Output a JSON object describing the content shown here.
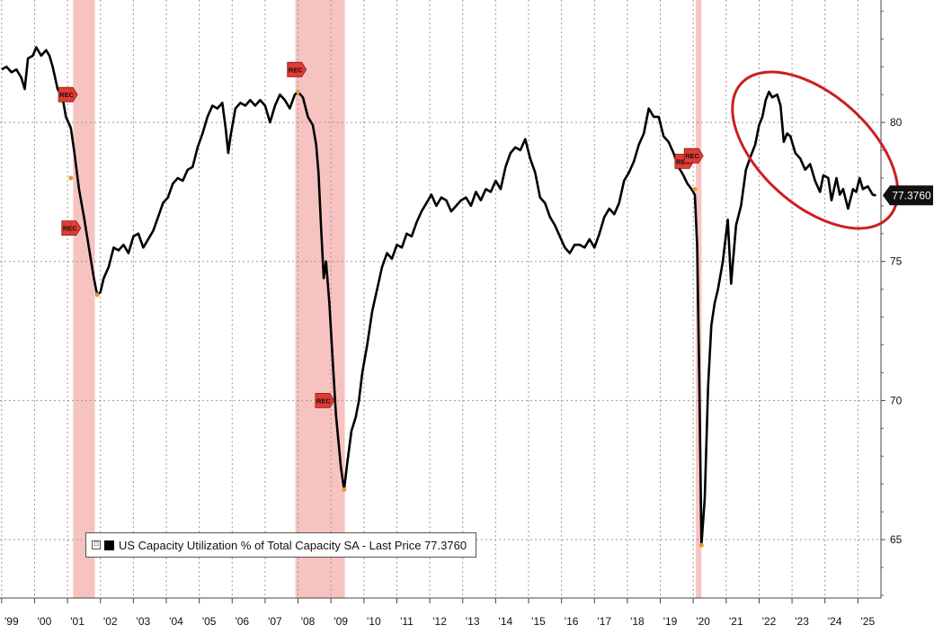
{
  "chart_data": {
    "type": "line",
    "legend_text": "US Capacity Utilization % of Total Capacity SA - Last Price 77.3760",
    "legend_placement": "bottom-left",
    "last_value_label": "77.3760",
    "last_value": 77.376,
    "ylim": [
      62.9,
      84.4
    ],
    "xlim": [
      1998.95,
      2025.7
    ],
    "y_ticks": [
      65,
      70,
      75,
      80
    ],
    "y_tick_labels": [
      "65",
      "70",
      "75",
      "80"
    ],
    "x_tick_labels": [
      "'99",
      "'00",
      "'01",
      "'02",
      "'03",
      "'04",
      "'05",
      "'06",
      "'07",
      "'08",
      "'09",
      "'10",
      "'11",
      "'12",
      "'13",
      "'14",
      "'15",
      "'16",
      "'17",
      "'18",
      "'19",
      "'20",
      "'21",
      "'22",
      "'23",
      "'24",
      "'25"
    ],
    "x_tick_values": [
      1999.3,
      2000.3,
      2001.3,
      2002.3,
      2003.3,
      2004.3,
      2005.3,
      2006.3,
      2007.3,
      2008.3,
      2009.3,
      2010.3,
      2011.3,
      2012.3,
      2013.3,
      2014.3,
      2015.3,
      2016.3,
      2017.3,
      2018.3,
      2019.3,
      2020.3,
      2021.3,
      2022.3,
      2023.3,
      2024.3,
      2025.3
    ],
    "grid": true,
    "recessions": [
      [
        2001.17,
        2001.83
      ],
      [
        2007.92,
        2009.42
      ],
      [
        2020.08,
        2020.25
      ]
    ],
    "rec_markers": [
      {
        "label": "REC",
        "x": 2001.0,
        "y": 81.0
      },
      {
        "label": "REC",
        "x": 2001.1,
        "y": 76.2
      },
      {
        "label": "REC",
        "x": 2007.95,
        "y": 81.9
      },
      {
        "label": "REC",
        "x": 2008.8,
        "y": 70.0
      },
      {
        "label": "REC",
        "x": 2019.72,
        "y": 78.6
      },
      {
        "label": "REC",
        "x": 2020.0,
        "y": 78.8
      }
    ],
    "series": [
      {
        "color": "#000000",
        "points": [
          [
            1999.0,
            81.9
          ],
          [
            1999.15,
            82.0
          ],
          [
            1999.3,
            81.8
          ],
          [
            1999.45,
            81.9
          ],
          [
            1999.6,
            81.6
          ],
          [
            1999.7,
            81.2
          ],
          [
            1999.8,
            82.3
          ],
          [
            1999.95,
            82.4
          ],
          [
            2000.05,
            82.7
          ],
          [
            2000.2,
            82.4
          ],
          [
            2000.35,
            82.6
          ],
          [
            2000.45,
            82.4
          ],
          [
            2000.55,
            82.0
          ],
          [
            2000.7,
            81.2
          ],
          [
            2000.85,
            80.9
          ],
          [
            2000.95,
            80.2
          ],
          [
            2001.1,
            79.8
          ],
          [
            2001.2,
            79.0
          ],
          [
            2001.35,
            77.6
          ],
          [
            2001.5,
            76.6
          ],
          [
            2001.65,
            75.5
          ],
          [
            2001.8,
            74.4
          ],
          [
            2001.9,
            73.8
          ],
          [
            2002.0,
            73.9
          ],
          [
            2002.1,
            74.4
          ],
          [
            2002.25,
            74.8
          ],
          [
            2002.4,
            75.5
          ],
          [
            2002.55,
            75.4
          ],
          [
            2002.7,
            75.6
          ],
          [
            2002.85,
            75.3
          ],
          [
            2003.0,
            75.9
          ],
          [
            2003.15,
            76.0
          ],
          [
            2003.3,
            75.5
          ],
          [
            2003.45,
            75.8
          ],
          [
            2003.6,
            76.1
          ],
          [
            2003.75,
            76.6
          ],
          [
            2003.9,
            77.1
          ],
          [
            2004.05,
            77.3
          ],
          [
            2004.2,
            77.8
          ],
          [
            2004.35,
            78.0
          ],
          [
            2004.5,
            77.9
          ],
          [
            2004.65,
            78.3
          ],
          [
            2004.8,
            78.4
          ],
          [
            2004.95,
            79.1
          ],
          [
            2005.1,
            79.6
          ],
          [
            2005.25,
            80.2
          ],
          [
            2005.4,
            80.6
          ],
          [
            2005.55,
            80.5
          ],
          [
            2005.7,
            80.7
          ],
          [
            2005.8,
            79.8
          ],
          [
            2005.88,
            78.9
          ],
          [
            2005.95,
            79.5
          ],
          [
            2006.1,
            80.5
          ],
          [
            2006.25,
            80.7
          ],
          [
            2006.4,
            80.6
          ],
          [
            2006.55,
            80.8
          ],
          [
            2006.7,
            80.6
          ],
          [
            2006.85,
            80.8
          ],
          [
            2007.0,
            80.6
          ],
          [
            2007.15,
            80.0
          ],
          [
            2007.3,
            80.6
          ],
          [
            2007.45,
            81.0
          ],
          [
            2007.6,
            80.8
          ],
          [
            2007.75,
            80.5
          ],
          [
            2007.9,
            81.0
          ],
          [
            2008.0,
            81.1
          ],
          [
            2008.15,
            80.9
          ],
          [
            2008.3,
            80.2
          ],
          [
            2008.45,
            79.9
          ],
          [
            2008.55,
            79.2
          ],
          [
            2008.62,
            78.2
          ],
          [
            2008.7,
            76.2
          ],
          [
            2008.78,
            74.4
          ],
          [
            2008.85,
            75.0
          ],
          [
            2008.95,
            73.5
          ],
          [
            2009.05,
            71.5
          ],
          [
            2009.15,
            69.5
          ],
          [
            2009.3,
            67.6
          ],
          [
            2009.4,
            66.8
          ],
          [
            2009.5,
            67.8
          ],
          [
            2009.62,
            68.9
          ],
          [
            2009.75,
            69.4
          ],
          [
            2009.85,
            70.0
          ],
          [
            2009.95,
            71.0
          ],
          [
            2010.1,
            72.0
          ],
          [
            2010.25,
            73.2
          ],
          [
            2010.4,
            74.0
          ],
          [
            2010.55,
            74.8
          ],
          [
            2010.7,
            75.3
          ],
          [
            2010.85,
            75.1
          ],
          [
            2011.0,
            75.6
          ],
          [
            2011.15,
            75.5
          ],
          [
            2011.3,
            76.0
          ],
          [
            2011.45,
            75.9
          ],
          [
            2011.6,
            76.4
          ],
          [
            2011.75,
            76.8
          ],
          [
            2011.9,
            77.1
          ],
          [
            2012.05,
            77.4
          ],
          [
            2012.2,
            77.0
          ],
          [
            2012.35,
            77.3
          ],
          [
            2012.5,
            77.2
          ],
          [
            2012.65,
            76.8
          ],
          [
            2012.8,
            77.0
          ],
          [
            2012.95,
            77.2
          ],
          [
            2013.1,
            77.3
          ],
          [
            2013.25,
            77.0
          ],
          [
            2013.4,
            77.5
          ],
          [
            2013.55,
            77.2
          ],
          [
            2013.7,
            77.6
          ],
          [
            2013.85,
            77.5
          ],
          [
            2014.0,
            77.9
          ],
          [
            2014.15,
            77.6
          ],
          [
            2014.3,
            78.4
          ],
          [
            2014.45,
            78.9
          ],
          [
            2014.6,
            79.1
          ],
          [
            2014.75,
            79.0
          ],
          [
            2014.9,
            79.4
          ],
          [
            2015.05,
            78.7
          ],
          [
            2015.2,
            78.2
          ],
          [
            2015.35,
            77.3
          ],
          [
            2015.5,
            77.1
          ],
          [
            2015.65,
            76.6
          ],
          [
            2015.8,
            76.3
          ],
          [
            2015.95,
            75.9
          ],
          [
            2016.1,
            75.5
          ],
          [
            2016.25,
            75.3
          ],
          [
            2016.4,
            75.6
          ],
          [
            2016.55,
            75.6
          ],
          [
            2016.7,
            75.5
          ],
          [
            2016.85,
            75.8
          ],
          [
            2017.0,
            75.5
          ],
          [
            2017.15,
            76.0
          ],
          [
            2017.3,
            76.6
          ],
          [
            2017.45,
            76.9
          ],
          [
            2017.6,
            76.7
          ],
          [
            2017.75,
            77.1
          ],
          [
            2017.9,
            77.9
          ],
          [
            2018.05,
            78.2
          ],
          [
            2018.2,
            78.6
          ],
          [
            2018.35,
            79.2
          ],
          [
            2018.5,
            79.6
          ],
          [
            2018.65,
            80.5
          ],
          [
            2018.8,
            80.2
          ],
          [
            2018.95,
            80.2
          ],
          [
            2019.1,
            79.5
          ],
          [
            2019.25,
            79.3
          ],
          [
            2019.4,
            78.9
          ],
          [
            2019.55,
            78.4
          ],
          [
            2019.7,
            78.1
          ],
          [
            2019.82,
            77.8
          ],
          [
            2019.95,
            77.6
          ],
          [
            2020.05,
            77.4
          ],
          [
            2020.12,
            75.5
          ],
          [
            2020.18,
            71.0
          ],
          [
            2020.25,
            64.8
          ],
          [
            2020.35,
            66.5
          ],
          [
            2020.45,
            70.5
          ],
          [
            2020.55,
            72.7
          ],
          [
            2020.65,
            73.5
          ],
          [
            2020.75,
            74.0
          ],
          [
            2020.9,
            75.0
          ],
          [
            2021.05,
            76.5
          ],
          [
            2021.15,
            74.2
          ],
          [
            2021.3,
            76.3
          ],
          [
            2021.45,
            77.0
          ],
          [
            2021.6,
            78.3
          ],
          [
            2021.75,
            78.8
          ],
          [
            2021.88,
            79.2
          ],
          [
            2022.0,
            79.9
          ],
          [
            2022.1,
            80.2
          ],
          [
            2022.2,
            80.8
          ],
          [
            2022.3,
            81.1
          ],
          [
            2022.4,
            80.9
          ],
          [
            2022.55,
            81.0
          ],
          [
            2022.65,
            80.6
          ],
          [
            2022.75,
            79.3
          ],
          [
            2022.85,
            79.6
          ],
          [
            2022.95,
            79.5
          ],
          [
            2023.1,
            78.9
          ],
          [
            2023.25,
            78.7
          ],
          [
            2023.4,
            78.3
          ],
          [
            2023.55,
            78.5
          ],
          [
            2023.7,
            77.9
          ],
          [
            2023.85,
            77.5
          ],
          [
            2023.95,
            78.1
          ],
          [
            2024.1,
            78.0
          ],
          [
            2024.2,
            77.2
          ],
          [
            2024.35,
            78.0
          ],
          [
            2024.45,
            77.4
          ],
          [
            2024.55,
            77.6
          ],
          [
            2024.7,
            76.9
          ],
          [
            2024.85,
            77.6
          ],
          [
            2024.95,
            77.5
          ],
          [
            2025.05,
            78.0
          ],
          [
            2025.15,
            77.6
          ],
          [
            2025.3,
            77.7
          ],
          [
            2025.45,
            77.4
          ],
          [
            2025.55,
            77.376
          ]
        ]
      }
    ],
    "highlight_ellipse": {
      "cx": 2023.7,
      "cy": 79.0,
      "rx": 1.95,
      "ry": 3.6,
      "rotate": 42,
      "color": "#cc1f1f"
    }
  }
}
